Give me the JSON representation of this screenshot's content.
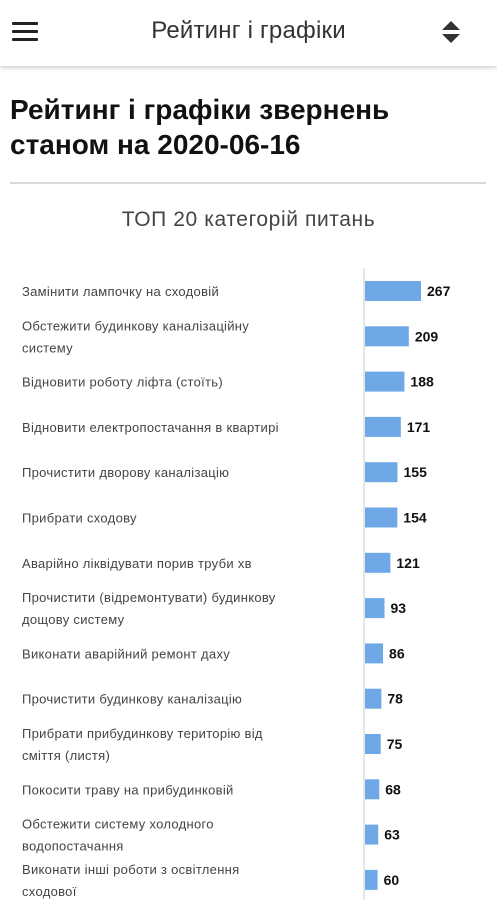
{
  "appbar": {
    "title": "Рейтинг і графіки"
  },
  "page": {
    "heading": "Рейтинг і графіки звернень станом на 2020-06-16"
  },
  "icons": {
    "menu": "hamburger-menu-icon",
    "sort": "sort-up-down-icon"
  },
  "colors": {
    "bar": "#6fa8e6",
    "axis": "#dddddd"
  },
  "chart_data": {
    "type": "bar",
    "orientation": "horizontal",
    "title": "ТОП 20 категорій питань",
    "grid": false,
    "categories": [
      [
        "Замінити лампочку на сходовій"
      ],
      [
        "Обстежити будинкову каналізаційну",
        "систему"
      ],
      [
        "Відновити роботу ліфта (стоїть)"
      ],
      [
        "Відновити електропостачання в квартирі"
      ],
      [
        "Прочистити дворову каналізацію"
      ],
      [
        "Прибрати сходову"
      ],
      [
        "Аварійно ліквідувати порив труби хв"
      ],
      [
        "Прочистити (відремонтувати) будинкову",
        "дощову систему"
      ],
      [
        "Виконати аварійний ремонт даху"
      ],
      [
        "Прочистити будинкову каналізацію"
      ],
      [
        "Прибрати прибудинкову територію від",
        "сміття (листя)"
      ],
      [
        "Покосити траву на прибудинковій"
      ],
      [
        "Обстежити систему холодного",
        "водопостачання"
      ],
      [
        "Виконати інші роботи з освітлення",
        "сходової"
      ]
    ],
    "values": [
      267,
      209,
      188,
      171,
      155,
      154,
      121,
      93,
      86,
      78,
      75,
      68,
      63,
      60
    ],
    "xlim": [
      0,
      267
    ]
  }
}
